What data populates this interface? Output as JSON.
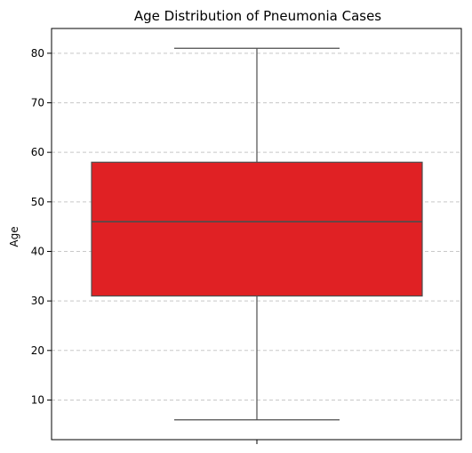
{
  "chart_data": {
    "type": "box",
    "title": "Age Distribution of Pneumonia Cases",
    "xlabel": "",
    "ylabel": "Age",
    "ylim": [
      2,
      85
    ],
    "yticks": [
      10,
      20,
      30,
      40,
      50,
      60,
      70,
      80
    ],
    "grid": "y-dashed",
    "box": {
      "min": 6,
      "q1": 31,
      "median": 46,
      "q3": 58,
      "max": 81
    },
    "colors": {
      "box_fill": "#e02124",
      "box_edge": "#4d4d4d",
      "grid": "#c8c8c8",
      "axis": "#000000"
    }
  }
}
